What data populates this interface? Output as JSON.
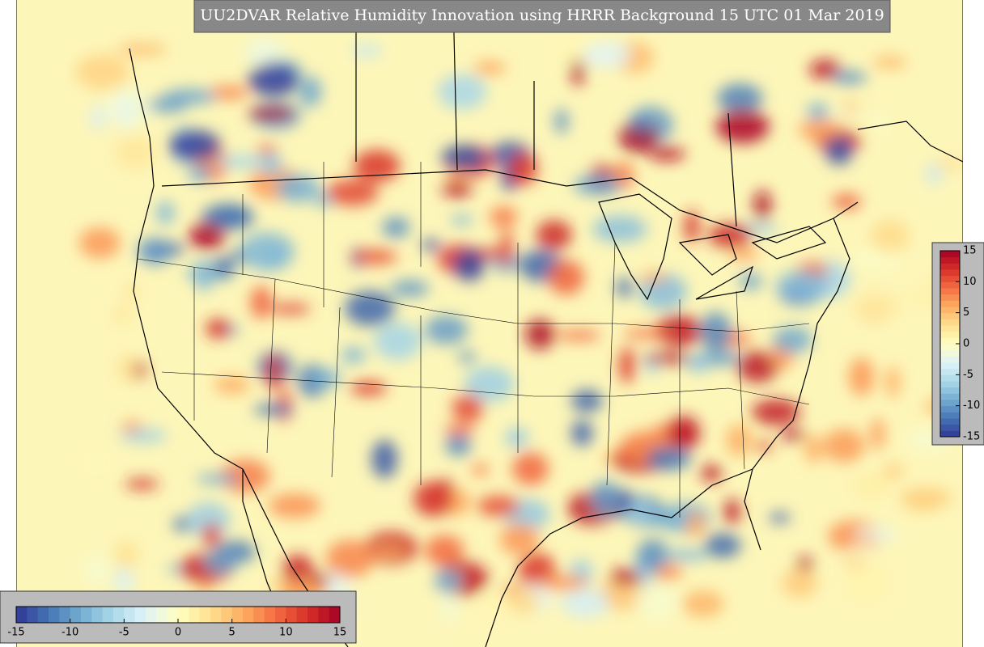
{
  "title": "UU2DVAR Relative Humidity Innovation using HRRR Background 15 UTC 01 Mar 2019",
  "colorbars": [
    {
      "orientation": "vertical",
      "range": [
        -15,
        15
      ],
      "ticks": [
        -15,
        -10,
        -5,
        0,
        5,
        10,
        15
      ]
    },
    {
      "orientation": "horizontal",
      "range": [
        -15,
        15
      ],
      "ticks": [
        -15,
        -10,
        -5,
        0,
        5,
        10,
        15
      ]
    }
  ]
}
